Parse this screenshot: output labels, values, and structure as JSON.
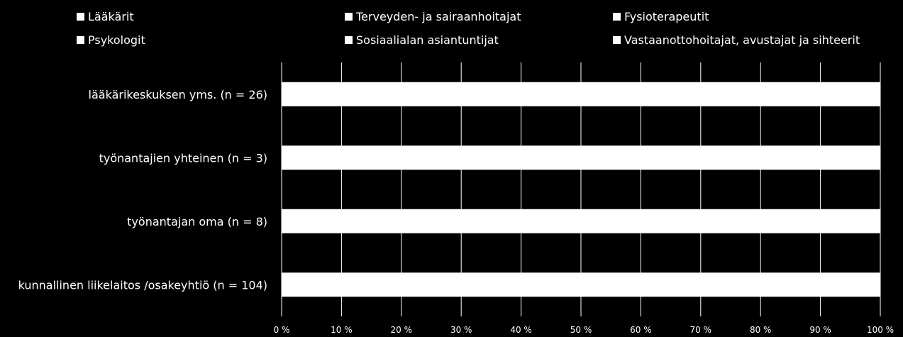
{
  "chart_data": {
    "type": "bar",
    "orientation": "horizontal",
    "stacked": true,
    "percent": true,
    "categories": [
      "lääkärikeskuksen yms. (n = 26)",
      "työnantajien yhteinen (n = 3)",
      "työnantajan oma (n = 8)",
      "kunnallinen liikelaitos /osakeyhtiö (n = 104)"
    ],
    "series": [
      {
        "name": "Lääkärit",
        "values": [
          0,
          0,
          0,
          0
        ]
      },
      {
        "name": "Terveyden- ja sairaanhoitajat",
        "values": [
          0,
          0,
          0,
          0
        ]
      },
      {
        "name": "Fysioterapeutit",
        "values": [
          0,
          0,
          0,
          0
        ]
      },
      {
        "name": "Psykologit",
        "values": [
          0,
          0,
          0,
          0
        ]
      },
      {
        "name": "Sosiaalialan asiantuntijat",
        "values": [
          0,
          0,
          0,
          0
        ]
      },
      {
        "name": "Vastaanottohoitajat, avustajat ja sihteerit",
        "values": [
          100,
          100,
          100,
          100
        ]
      }
    ],
    "xlim": [
      0,
      100
    ],
    "xticks": [
      "0 %",
      "10 %",
      "20 %",
      "30 %",
      "40 %",
      "50 %",
      "60 %",
      "70 %",
      "80 %",
      "90 %",
      "100 %"
    ],
    "grid": true,
    "legend_position": "top",
    "colors": {
      "background": "#000000",
      "bar": "#ffffff",
      "grid": "#ffffff",
      "text": "#ffffff"
    }
  }
}
